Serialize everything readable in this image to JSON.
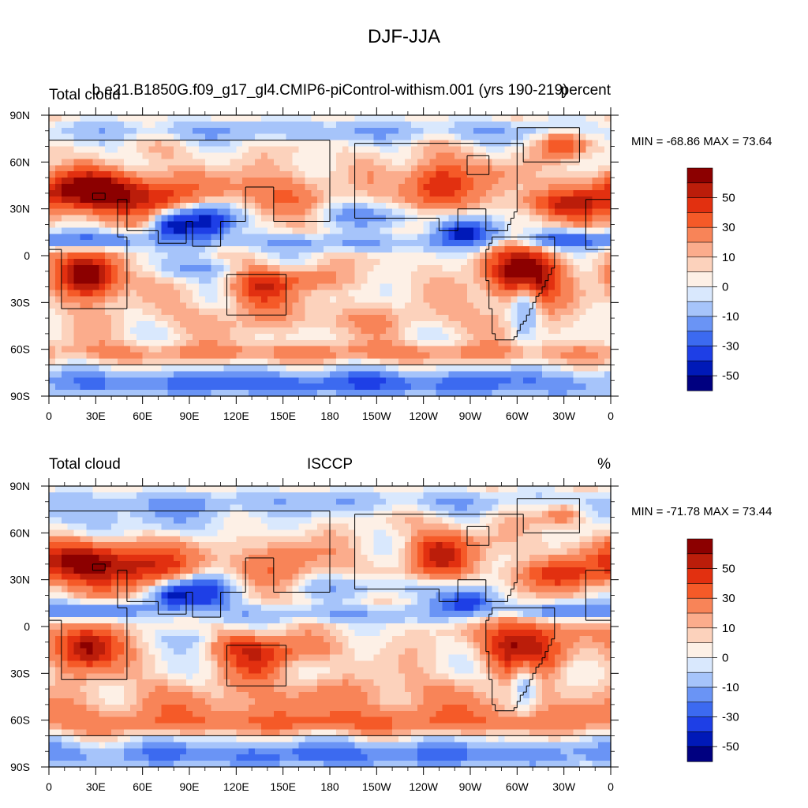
{
  "title": "DJF-JJA",
  "panels": [
    {
      "left_string": "Total cloud",
      "center_string": "b.e21.B1850G.f09_g17_gl4.CMIP6-piControl-withism.001 (yrs 190-219)",
      "right_string": "percent",
      "min_max": "MIN = -68.86 MAX =  73.64"
    },
    {
      "left_string": "Total cloud",
      "center_string": "ISCCP",
      "right_string": "%",
      "min_max": "MIN = -71.78 MAX =  73.44"
    }
  ],
  "chart_data": {
    "type": "heatmap",
    "projection": "cylindrical-equidistant",
    "x_tick_labels": [
      "0",
      "30E",
      "60E",
      "90E",
      "120E",
      "150E",
      "180",
      "150W",
      "120W",
      "90W",
      "60W",
      "30W",
      "0"
    ],
    "y_tick_labels": [
      "90N",
      "60N",
      "30N",
      "0",
      "30S",
      "60S",
      "90S"
    ],
    "xlim": [
      0,
      360
    ],
    "ylim": [
      -90,
      90
    ],
    "colorbar": {
      "levels": [
        -70,
        -60,
        -50,
        -40,
        -30,
        -20,
        -10,
        -5,
        0,
        5,
        10,
        20,
        30,
        40,
        50,
        60,
        70
      ],
      "labels": [
        "50",
        "30",
        "10",
        "0",
        "-10",
        "-30",
        "-50"
      ],
      "colors": [
        "#000080",
        "#0019b8",
        "#1e3fe6",
        "#3c6af0",
        "#6a94f5",
        "#a6c4fa",
        "#d9e8fd",
        "#fdf0e6",
        "#fcd2bc",
        "#fbac8c",
        "#f88458",
        "#f55a28",
        "#e23010",
        "#bb1d0a",
        "#8c0000"
      ]
    }
  }
}
